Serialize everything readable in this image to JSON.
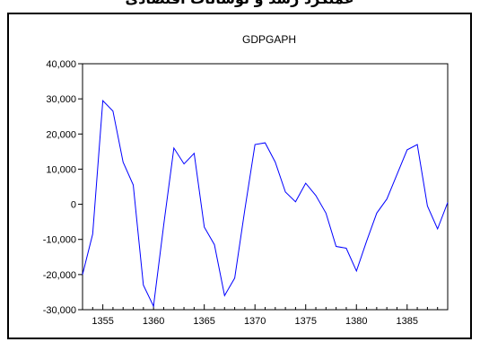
{
  "top_text": "عملکرد رشد و نوسانات اقتصادی",
  "chart_data": {
    "type": "line",
    "title": "GDPGAPH",
    "xlabel": "",
    "ylabel": "",
    "x": [
      1353,
      1354,
      1355,
      1356,
      1357,
      1358,
      1359,
      1360,
      1361,
      1362,
      1363,
      1364,
      1365,
      1366,
      1367,
      1368,
      1369,
      1370,
      1371,
      1372,
      1373,
      1374,
      1375,
      1376,
      1377,
      1378,
      1379,
      1380,
      1381,
      1382,
      1383,
      1384,
      1385,
      1386,
      1387,
      1388,
      1389
    ],
    "series": [
      {
        "values": [
          -20000,
          -8500,
          29500,
          26500,
          12000,
          5500,
          -23000,
          -29000,
          -6000,
          16000,
          11500,
          14500,
          -6500,
          -11500,
          -26000,
          -21000,
          -1500,
          17000,
          17500,
          12000,
          3500,
          700,
          6000,
          2500,
          -2500,
          -12000,
          -12500,
          -19000,
          -10500,
          -2500,
          1500,
          8500,
          15500,
          17000,
          -500,
          -7000,
          500
        ],
        "color": "#0000ff"
      }
    ],
    "xlim": [
      1353,
      1389
    ],
    "ylim": [
      -30000,
      40000
    ],
    "yticks": [
      -30000,
      -20000,
      -10000,
      0,
      10000,
      20000,
      30000,
      40000
    ],
    "ytick_labels": [
      "-30,000",
      "-20,000",
      "-10,000",
      "0",
      "10,000",
      "20,000",
      "30,000",
      "40,000"
    ],
    "xticks": [
      1355,
      1360,
      1365,
      1370,
      1375,
      1380,
      1385
    ],
    "xtick_labels": [
      "1355",
      "1360",
      "1365",
      "1370",
      "1375",
      "1380",
      "1385"
    ],
    "grid": false,
    "legend": "none"
  }
}
